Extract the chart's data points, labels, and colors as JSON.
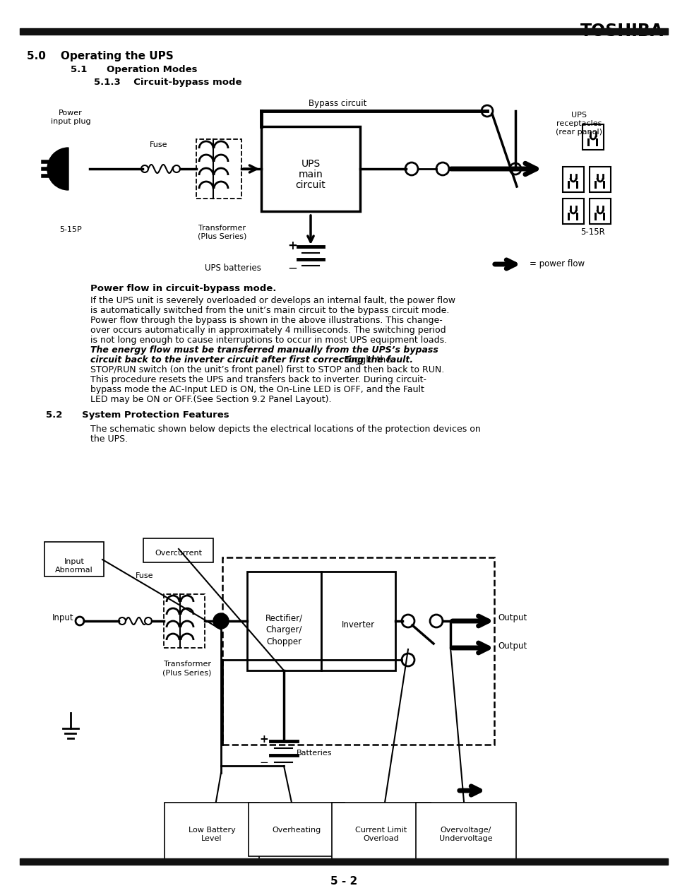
{
  "title": "TOSHIBA",
  "page_number": "5 - 2",
  "background_color": "#ffffff",
  "text_color": "#000000",
  "section_heading": "5.0    Operating the UPS",
  "sub_heading1": "5.1      Operation Modes",
  "sub_heading2": "5.1.3    Circuit-bypass mode",
  "body_text_bold": "Power flow in circuit-bypass mode.",
  "body_text_normal": [
    "If the UPS unit is severely overloaded or develops an internal fault, the power flow",
    "is automatically switched from the unit’s main circuit to the bypass circuit mode.",
    "Power flow through the bypass is shown in the above illustrations. This change-",
    "over occurs automatically in approximately 4 milliseconds. The switching period",
    "is not long enough to cause interruptions to occur in most UPS equipment loads."
  ],
  "body_text_bolditalic": [
    "The energy flow must be transferred manually from the UPS’s bypass",
    "circuit back to the inverter circuit after first correcting the fault."
  ],
  "body_text_bolditalic_end": " Toggle the",
  "body_text_after": [
    "STOP/RUN switch (on the unit’s front panel) first to STOP and then back to RUN.",
    "This procedure resets the UPS and transfers back to inverter. During circuit-",
    "bypass mode the AC-Input LED is ON, the On-Line LED is OFF, and the Fault",
    "LED may be ON or OFF.(See Section 9.2 Panel Layout)."
  ],
  "section2_heading": "5.2      System Protection Features",
  "section2_text": [
    "The schematic shown below depicts the electrical locations of the protection devices on",
    "the UPS."
  ]
}
